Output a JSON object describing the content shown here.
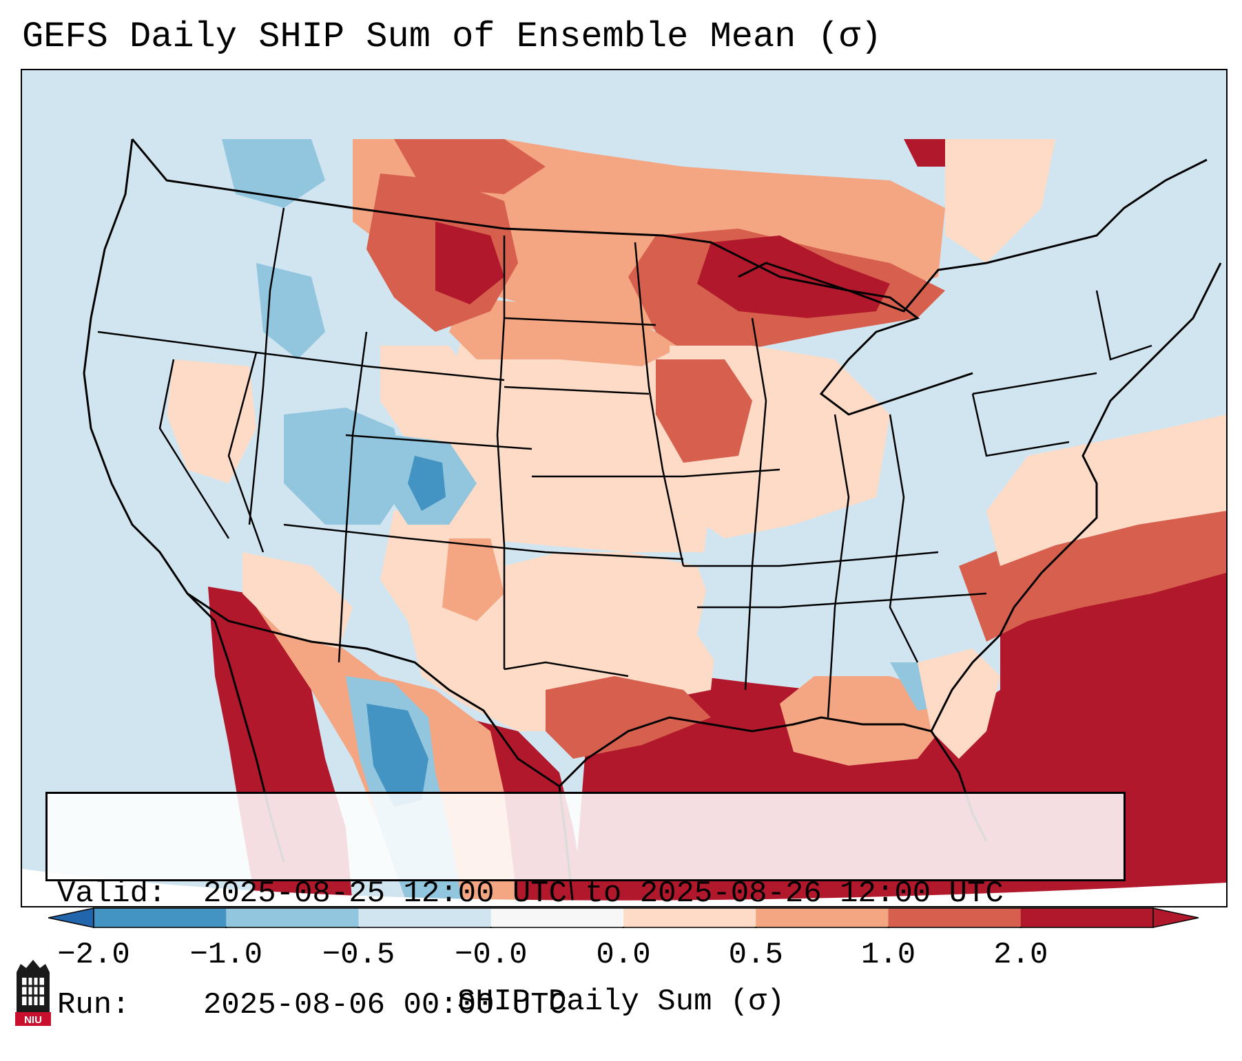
{
  "title": "GEFS Daily SHIP Sum of Ensemble Mean (σ)",
  "info": {
    "valid_label": "Valid:",
    "valid_value": "2025-08-25 12:00 UTC to 2025-08-26 12:00 UTC",
    "run_label": "Run:",
    "run_value": "2025-08-06 00:00 UTC"
  },
  "colorbar": {
    "label": "SHIP Daily Sum (σ)",
    "ticks": [
      "−2.0",
      "−1.0",
      "−0.5",
      "−0.0",
      "0.0",
      "0.5",
      "1.0",
      "2.0"
    ],
    "colors": [
      "#4393c3",
      "#92c5de",
      "#d1e5f0",
      "#f7f7f7",
      "#fddbc7",
      "#f4a582",
      "#d6604d",
      "#b2182b"
    ],
    "under_color": "#2166ac",
    "over_color": "#b2182b"
  },
  "logo": {
    "text": "NIU",
    "color": "#c8102e"
  }
}
